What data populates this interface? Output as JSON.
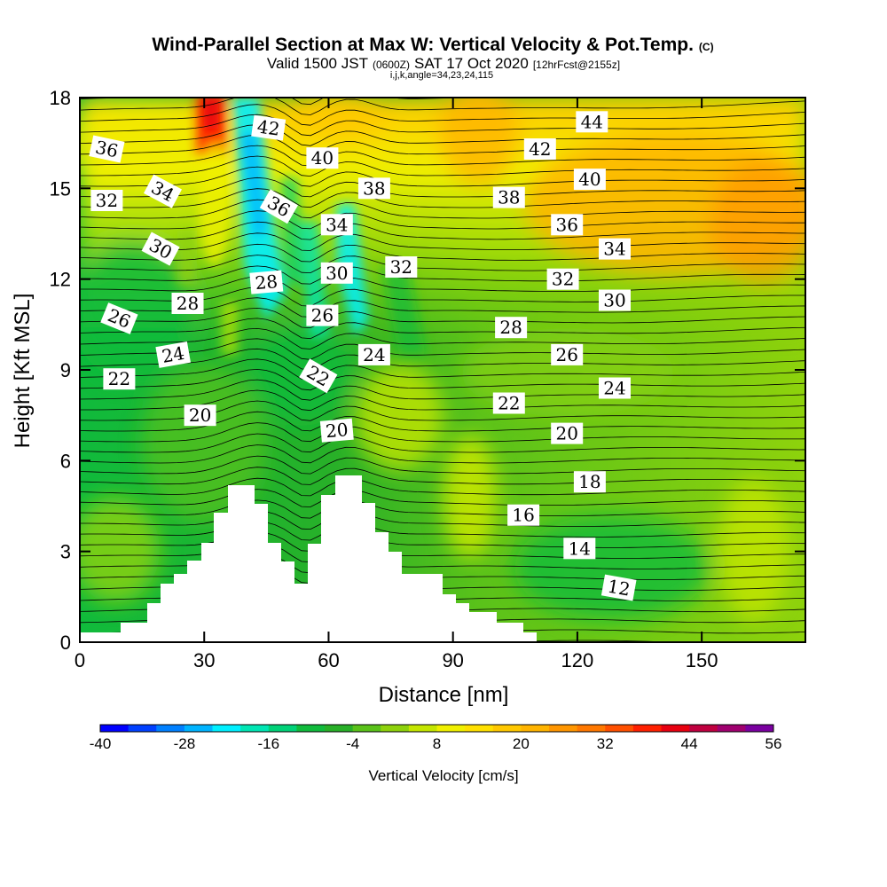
{
  "title": {
    "main": "Wind-Parallel Section at Max W: Vertical Velocity & Pot.Temp.",
    "main_mark": "(C)",
    "valid_a": "Valid 1500 JST",
    "valid_b": "(0600Z)",
    "valid_c": "SAT 17 Oct 2020",
    "valid_d": "[12hrFcst@2155z]",
    "indices": "i,j,k,angle=34,23,24,115"
  },
  "chart_data": {
    "type": "heatmap",
    "xlabel": "Distance [nm]",
    "ylabel": "Height [Kft MSL]",
    "xlim": [
      0,
      175
    ],
    "ylim": [
      0,
      18
    ],
    "x_ticks": [
      {
        "value": 0,
        "label": "0"
      },
      {
        "value": 30,
        "label": "30"
      },
      {
        "value": 60,
        "label": "60"
      },
      {
        "value": 90,
        "label": "90"
      },
      {
        "value": 120,
        "label": "120"
      },
      {
        "value": 150,
        "label": "150"
      }
    ],
    "y_ticks": [
      {
        "value": 0,
        "label": "0"
      },
      {
        "value": 3,
        "label": "3"
      },
      {
        "value": 6,
        "label": "6"
      },
      {
        "value": 9,
        "label": "9"
      },
      {
        "value": 12,
        "label": "12"
      },
      {
        "value": 15,
        "label": "15"
      },
      {
        "value": 18,
        "label": "18"
      }
    ],
    "colorbar": {
      "label": "Vertical Velocity [cm/s]",
      "min": -40,
      "max": 56,
      "step": 4,
      "tick_labels": [
        {
          "value": -40,
          "label": "-40"
        },
        {
          "value": -28,
          "label": "-28"
        },
        {
          "value": -16,
          "label": "-16"
        },
        {
          "value": -4,
          "label": "-4"
        },
        {
          "value": 8,
          "label": "8"
        },
        {
          "value": 20,
          "label": "20"
        },
        {
          "value": 32,
          "label": "32"
        },
        {
          "value": 44,
          "label": "44"
        },
        {
          "value": 56,
          "label": "56"
        }
      ],
      "colors": [
        "#0000ff",
        "#0040ff",
        "#0080ff",
        "#00b4ff",
        "#00f0ff",
        "#00e6b4",
        "#00d278",
        "#10bb3c",
        "#28b028",
        "#5ac21a",
        "#8ed20c",
        "#c4e600",
        "#f0f000",
        "#ffe000",
        "#ffc800",
        "#ffb400",
        "#ff9600",
        "#ff7800",
        "#ff5000",
        "#ff2000",
        "#e80010",
        "#c00040",
        "#a00070",
        "#7a00a0"
      ]
    },
    "contour_labels": [
      {
        "text": "42",
        "x": 45.5,
        "y": 17.0,
        "angle": 8
      },
      {
        "text": "44",
        "x": 123.5,
        "y": 17.2,
        "angle": 0
      },
      {
        "text": "42",
        "x": 111.0,
        "y": 16.3,
        "angle": 0
      },
      {
        "text": "40",
        "x": 58.5,
        "y": 16.0,
        "angle": 0
      },
      {
        "text": "40",
        "x": 123.0,
        "y": 15.3,
        "angle": 0
      },
      {
        "text": "38",
        "x": 71.0,
        "y": 15.0,
        "angle": 0
      },
      {
        "text": "38",
        "x": 103.5,
        "y": 14.7,
        "angle": 0
      },
      {
        "text": "36",
        "x": 6.5,
        "y": 16.3,
        "angle": 12
      },
      {
        "text": "36",
        "x": 48.0,
        "y": 14.4,
        "angle": 30
      },
      {
        "text": "36",
        "x": 117.5,
        "y": 13.8,
        "angle": 0
      },
      {
        "text": "34",
        "x": 20.0,
        "y": 14.9,
        "angle": 28
      },
      {
        "text": "34",
        "x": 62.0,
        "y": 13.8,
        "angle": 0
      },
      {
        "text": "34",
        "x": 129.0,
        "y": 13.0,
        "angle": 0
      },
      {
        "text": "32",
        "x": 6.5,
        "y": 14.6,
        "angle": 0
      },
      {
        "text": "32",
        "x": 77.5,
        "y": 12.4,
        "angle": 0
      },
      {
        "text": "32",
        "x": 116.5,
        "y": 12.0,
        "angle": 0
      },
      {
        "text": "30",
        "x": 19.5,
        "y": 13.0,
        "angle": 28
      },
      {
        "text": "30",
        "x": 62.0,
        "y": 12.2,
        "angle": 0
      },
      {
        "text": "30",
        "x": 129.0,
        "y": 11.3,
        "angle": 0
      },
      {
        "text": "28",
        "x": 26.0,
        "y": 11.2,
        "angle": 0
      },
      {
        "text": "28",
        "x": 45.0,
        "y": 11.9,
        "angle": -5
      },
      {
        "text": "28",
        "x": 104.0,
        "y": 10.4,
        "angle": 0
      },
      {
        "text": "26",
        "x": 9.5,
        "y": 10.7,
        "angle": 22
      },
      {
        "text": "26",
        "x": 58.5,
        "y": 10.8,
        "angle": 0
      },
      {
        "text": "26",
        "x": 117.5,
        "y": 9.5,
        "angle": 0
      },
      {
        "text": "24",
        "x": 22.5,
        "y": 9.5,
        "angle": -10
      },
      {
        "text": "24",
        "x": 71.0,
        "y": 9.5,
        "angle": 0
      },
      {
        "text": "24",
        "x": 129.0,
        "y": 8.4,
        "angle": 0
      },
      {
        "text": "22",
        "x": 9.5,
        "y": 8.7,
        "angle": 0
      },
      {
        "text": "22",
        "x": 57.5,
        "y": 8.8,
        "angle": 30
      },
      {
        "text": "22",
        "x": 103.5,
        "y": 7.9,
        "angle": 0
      },
      {
        "text": "20",
        "x": 29.0,
        "y": 7.5,
        "angle": 0
      },
      {
        "text": "20",
        "x": 62.0,
        "y": 7.0,
        "angle": -5
      },
      {
        "text": "20",
        "x": 117.5,
        "y": 6.9,
        "angle": 0
      },
      {
        "text": "18",
        "x": 123.0,
        "y": 5.3,
        "angle": 0
      },
      {
        "text": "16",
        "x": 107.0,
        "y": 4.2,
        "angle": 0
      },
      {
        "text": "14",
        "x": 120.5,
        "y": 3.1,
        "angle": 0
      },
      {
        "text": "12",
        "x": 130.0,
        "y": 1.8,
        "angle": 10
      }
    ]
  }
}
